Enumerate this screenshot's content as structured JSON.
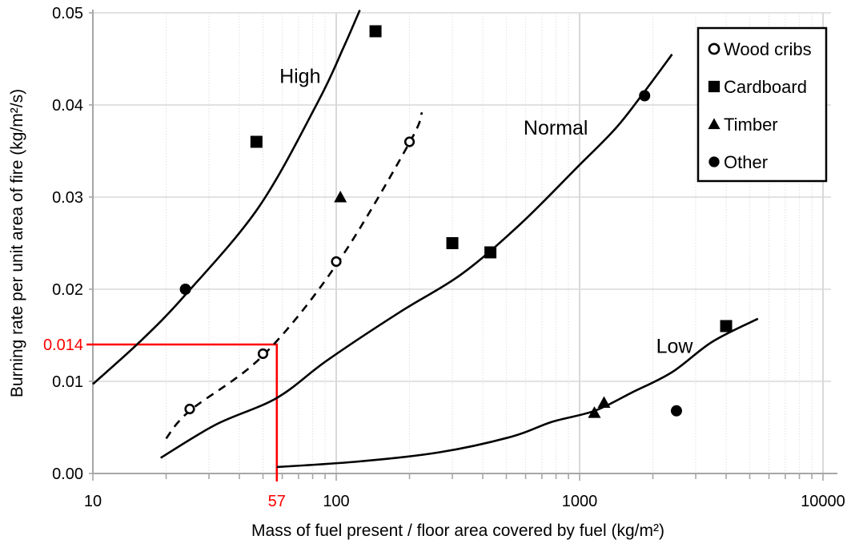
{
  "chart_data": {
    "type": "scatter",
    "title": "",
    "x_axis": {
      "label": "Mass of fuel present / floor area covered by fuel (kg/m²)",
      "scale": "log",
      "min": 10,
      "max": 10000,
      "ticks": [
        10,
        100,
        1000,
        10000
      ],
      "tick_labels": [
        "10",
        "100",
        "1000",
        "10000"
      ],
      "minor_gridlines": "dotted"
    },
    "y_axis": {
      "label": "Burning rate per unit area of fire (kg/m²/s)",
      "scale": "linear",
      "min": 0,
      "max": 0.05,
      "ticks": [
        0,
        0.01,
        0.02,
        0.03,
        0.04,
        0.05
      ],
      "tick_labels": [
        "0.00",
        "0.01",
        "0.02",
        "0.03",
        "0.04",
        "0.05"
      ]
    },
    "series": [
      {
        "name": "Wood cribs",
        "marker": "open-circle",
        "points": [
          [
            25,
            0.007
          ],
          [
            50,
            0.013
          ],
          [
            100,
            0.023
          ],
          [
            200,
            0.036
          ]
        ]
      },
      {
        "name": "Cardboard",
        "marker": "filled-square",
        "points": [
          [
            47,
            0.036
          ],
          [
            145,
            0.048
          ],
          [
            300,
            0.025
          ],
          [
            430,
            0.024
          ],
          [
            4000,
            0.016
          ]
        ]
      },
      {
        "name": "Timber",
        "marker": "filled-triangle",
        "points": [
          [
            104,
            0.03
          ],
          [
            1150,
            0.0066
          ],
          [
            1260,
            0.0077
          ]
        ]
      },
      {
        "name": "Other",
        "marker": "filled-circle",
        "points": [
          [
            24,
            0.02
          ],
          [
            1850,
            0.041
          ],
          [
            2500,
            0.0068
          ]
        ]
      }
    ],
    "curves": [
      {
        "name": "High",
        "style": "solid",
        "label": "High",
        "label_pos": [
          71,
          0.0431
        ],
        "points": [
          [
            10,
            0.0097
          ],
          [
            15.6,
            0.0143
          ],
          [
            24,
            0.0194
          ],
          [
            48,
            0.0289
          ],
          [
            84,
            0.0403
          ],
          [
            107,
            0.0462
          ],
          [
            125,
            0.0503
          ]
        ]
      },
      {
        "name": "Normal",
        "style": "solid",
        "label": "Normal",
        "label_pos": [
          798,
          0.0375
        ],
        "points": [
          [
            19,
            0.0017
          ],
          [
            32,
            0.0053
          ],
          [
            57,
            0.0082
          ],
          [
            92,
            0.0123
          ],
          [
            182,
            0.0175
          ],
          [
            326,
            0.0216
          ],
          [
            567,
            0.027
          ],
          [
            966,
            0.0331
          ],
          [
            1410,
            0.0375
          ],
          [
            1841,
            0.0414
          ],
          [
            2399,
            0.0455
          ]
        ]
      },
      {
        "name": "Low",
        "style": "solid",
        "label": "Low",
        "label_pos": [
          2455,
          0.0138
        ],
        "points": [
          [
            57,
            0.0007
          ],
          [
            124,
            0.0013
          ],
          [
            266,
            0.0023
          ],
          [
            526,
            0.004
          ],
          [
            769,
            0.0056
          ],
          [
            1151,
            0.0068
          ],
          [
            1644,
            0.0088
          ],
          [
            2399,
            0.011
          ],
          [
            3508,
            0.0143
          ],
          [
            5408,
            0.0168
          ]
        ]
      },
      {
        "name": "Wood cribs trend",
        "style": "dashed",
        "label": "",
        "label_pos": null,
        "points": [
          [
            20,
            0.0038
          ],
          [
            25,
            0.0068
          ],
          [
            50,
            0.0128
          ],
          [
            101,
            0.0228
          ],
          [
            200,
            0.0359
          ],
          [
            225,
            0.0392
          ]
        ]
      }
    ],
    "annotation": {
      "rate": 0.014,
      "rate_label": "0.014",
      "mass": 57,
      "mass_label": "57",
      "color": "#ff0000"
    },
    "legend": {
      "position": "top-right",
      "items": [
        {
          "label": "Wood cribs",
          "marker": "open-circle"
        },
        {
          "label": "Cardboard",
          "marker": "filled-square"
        },
        {
          "label": "Timber",
          "marker": "filled-triangle"
        },
        {
          "label": "Other",
          "marker": "filled-circle"
        }
      ]
    },
    "colors": {
      "data": "#000000",
      "grid_major": "#d9d9d9",
      "grid_minor": "#e4e4e4",
      "axis": "#a6a6a6",
      "annotation": "#ff0000",
      "background": "#ffffff",
      "text": "#000000"
    }
  }
}
